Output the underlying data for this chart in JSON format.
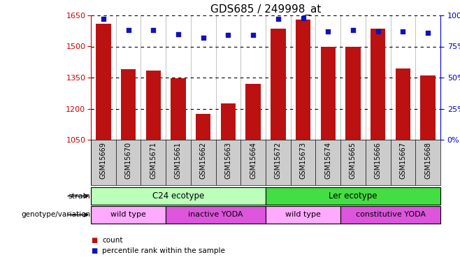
{
  "title": "GDS685 / 249998_at",
  "samples": [
    "GSM15669",
    "GSM15670",
    "GSM15671",
    "GSM15661",
    "GSM15662",
    "GSM15663",
    "GSM15664",
    "GSM15672",
    "GSM15673",
    "GSM15674",
    "GSM15665",
    "GSM15666",
    "GSM15667",
    "GSM15668"
  ],
  "counts": [
    1610,
    1390,
    1385,
    1345,
    1175,
    1225,
    1320,
    1585,
    1630,
    1500,
    1500,
    1585,
    1395,
    1360
  ],
  "percentile_ranks": [
    97,
    88,
    88,
    85,
    82,
    84,
    84,
    97,
    98,
    87,
    88,
    87,
    87,
    86
  ],
  "ylim_left": [
    1050,
    1650
  ],
  "ylim_right": [
    0,
    100
  ],
  "yticks_left": [
    1050,
    1200,
    1350,
    1500,
    1650
  ],
  "yticks_right": [
    0,
    25,
    50,
    75,
    100
  ],
  "bar_color": "#bb1111",
  "dot_color": "#1111bb",
  "strain_groups": [
    {
      "label": "C24 ecotype",
      "start": 0,
      "end": 7,
      "color": "#bbffbb"
    },
    {
      "label": "Ler ecotype",
      "start": 7,
      "end": 14,
      "color": "#44dd44"
    }
  ],
  "genotype_groups": [
    {
      "label": "wild type",
      "start": 0,
      "end": 3,
      "color": "#ffaaff"
    },
    {
      "label": "inactive YODA",
      "start": 3,
      "end": 7,
      "color": "#dd55dd"
    },
    {
      "label": "wild type",
      "start": 7,
      "end": 10,
      "color": "#ffaaff"
    },
    {
      "label": "constitutive YODA",
      "start": 10,
      "end": 14,
      "color": "#dd55dd"
    }
  ],
  "legend_count_label": "count",
  "legend_pct_label": "percentile rank within the sample",
  "strain_label": "strain",
  "geno_label": "genotype/variation",
  "tick_color_left": "#cc0000",
  "tick_color_right": "#0000cc",
  "xtick_bg": "#cccccc"
}
